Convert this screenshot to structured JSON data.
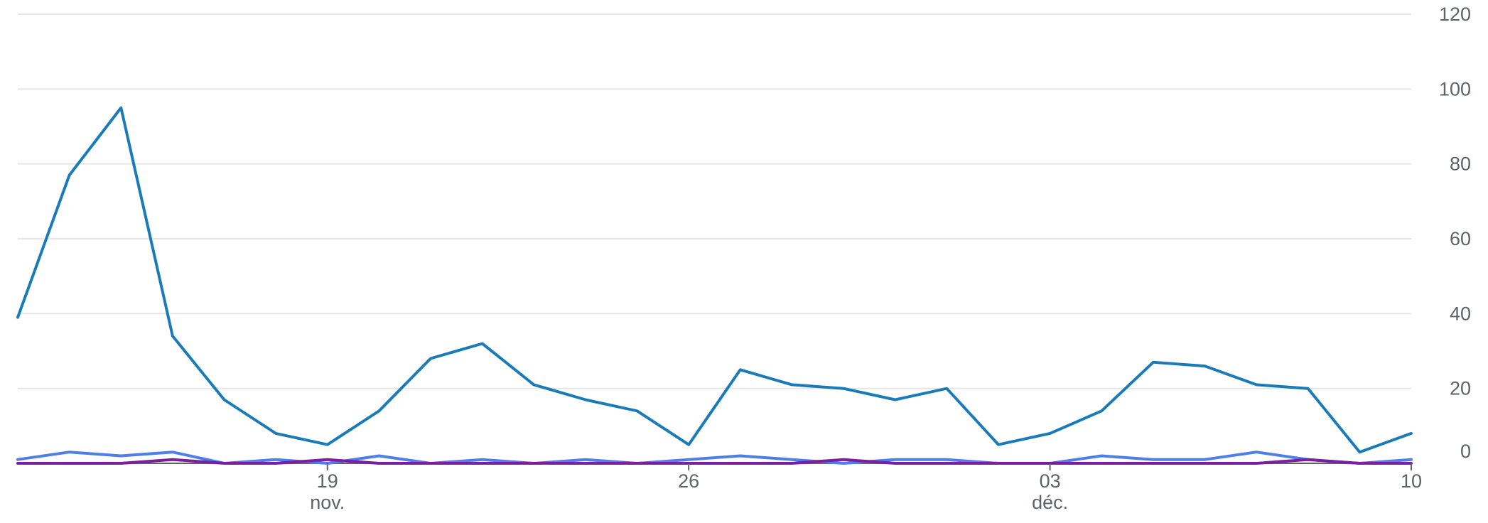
{
  "chart_data": {
    "type": "line",
    "grid": true,
    "ylim": [
      0,
      120
    ],
    "yticks": [
      "0",
      "20",
      "40",
      "60",
      "80",
      "100",
      "120"
    ],
    "xticks": [
      {
        "label": "19",
        "sub": "nov.",
        "date": "2023-11-19"
      },
      {
        "label": "26",
        "sub": "",
        "date": "2023-11-26"
      },
      {
        "label": "03",
        "sub": "déc.",
        "date": "2023-12-03"
      },
      {
        "label": "10",
        "sub": "",
        "date": "2023-12-10"
      }
    ],
    "x": [
      "2023-11-13",
      "2023-11-14",
      "2023-11-15",
      "2023-11-16",
      "2023-11-17",
      "2023-11-18",
      "2023-11-19",
      "2023-11-20",
      "2023-11-21",
      "2023-11-22",
      "2023-11-23",
      "2023-11-24",
      "2023-11-25",
      "2023-11-26",
      "2023-11-27",
      "2023-11-28",
      "2023-11-29",
      "2023-11-30",
      "2023-12-01",
      "2023-12-02",
      "2023-12-03",
      "2023-12-04",
      "2023-12-05",
      "2023-12-06",
      "2023-12-07",
      "2023-12-08",
      "2023-12-09",
      "2023-12-10"
    ],
    "series": [
      {
        "color": "#1a7bb9",
        "values": [
          39,
          77,
          95,
          34,
          17,
          8,
          5,
          14,
          28,
          32,
          21,
          17,
          14,
          5,
          25,
          21,
          20,
          17,
          20,
          5,
          8,
          14,
          27,
          26,
          21,
          20,
          3,
          8
        ]
      },
      {
        "color": "#4e7ee8",
        "values": [
          1,
          3,
          2,
          3,
          0,
          1,
          0,
          2,
          0,
          1,
          0,
          1,
          0,
          1,
          2,
          1,
          0,
          1,
          1,
          0,
          0,
          2,
          1,
          1,
          3,
          1,
          0,
          1
        ]
      },
      {
        "color": "#7b1fa2",
        "values": [
          0,
          0,
          0,
          1,
          0,
          0,
          1,
          0,
          0,
          0,
          0,
          0,
          0,
          0,
          0,
          0,
          1,
          0,
          0,
          0,
          0,
          0,
          0,
          0,
          0,
          1,
          0,
          0
        ]
      }
    ]
  }
}
